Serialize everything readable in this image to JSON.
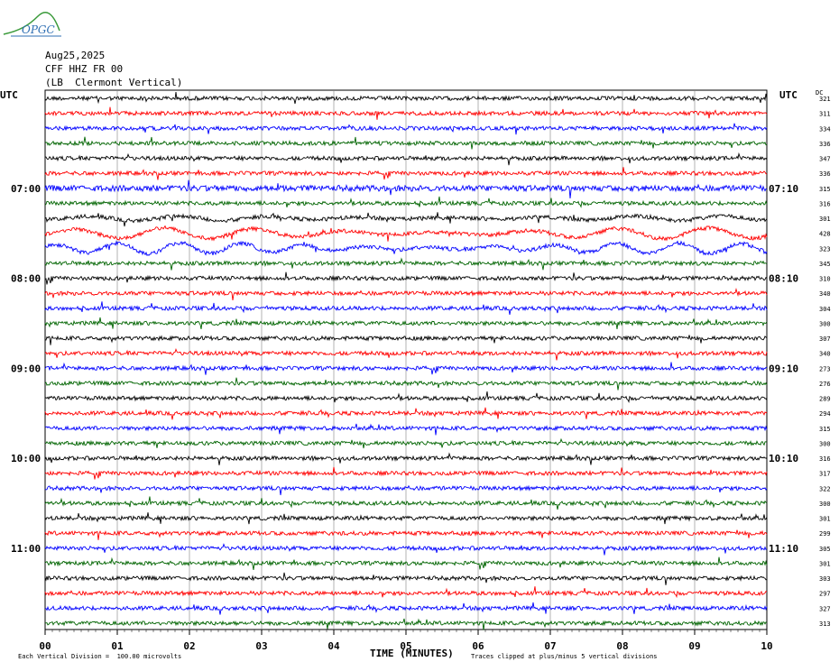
{
  "logo": {
    "text": "OPGC"
  },
  "header": {
    "date": "Aug25,2025",
    "station": "CFF HHZ FR 00",
    "location": "(LB  Clermont Vertical)"
  },
  "labels": {
    "utc_left": "UTC",
    "utc_right": "UTC",
    "dc": "DC"
  },
  "footer": {
    "division": "Each Vertical Division =  100.00 microvolts",
    "clip": "Traces clipped at plus/minus 5 vertical divisions"
  },
  "colors": {
    "cycle": [
      "#000000",
      "#ff0000",
      "#0000ff",
      "#006400"
    ],
    "grid": "#808080",
    "logo": "#2f6fb3"
  },
  "chart_data": {
    "type": "line",
    "title": "",
    "xlabel": "TIME (MINUTES)",
    "ylabel": "",
    "xlim": [
      0,
      10
    ],
    "x_ticks": [
      "00",
      "01",
      "02",
      "03",
      "04",
      "05",
      "06",
      "07",
      "08",
      "09",
      "10"
    ],
    "trace_count": 36,
    "left_time_labels": [
      {
        "row": 6,
        "label": "07:00"
      },
      {
        "row": 12,
        "label": "08:00"
      },
      {
        "row": 18,
        "label": "09:00"
      },
      {
        "row": 24,
        "label": "10:00"
      },
      {
        "row": 30,
        "label": "11:00"
      }
    ],
    "right_time_labels": [
      {
        "row": 6,
        "label": "07:10"
      },
      {
        "row": 12,
        "label": "08:10"
      },
      {
        "row": 18,
        "label": "09:10"
      },
      {
        "row": 24,
        "label": "10:10"
      },
      {
        "row": 30,
        "label": "11:10"
      }
    ],
    "dc_offsets": [
      321,
      311,
      334,
      336,
      347,
      336,
      315,
      316,
      301,
      428,
      323,
      345,
      310,
      340,
      304,
      300,
      307,
      340,
      273,
      276,
      289,
      294,
      315,
      300,
      316,
      317,
      322,
      300,
      301,
      299,
      305,
      301,
      303,
      297,
      327,
      313
    ]
  }
}
